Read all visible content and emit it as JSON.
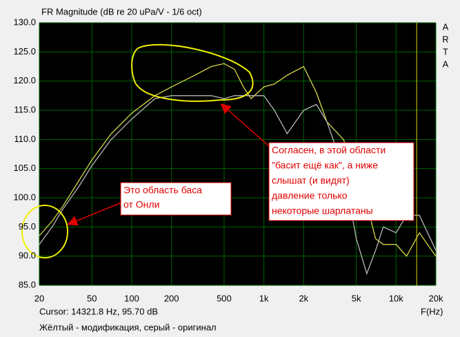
{
  "chart_data": {
    "type": "line",
    "title": "FR Magnitude (dB re 20 uPa/V - 1/6 oct)",
    "x_label": "F(Hz)",
    "side_label": [
      "A",
      "R",
      "T",
      "A"
    ],
    "log_x": true,
    "grid": true,
    "x": [
      20,
      25,
      30,
      40,
      50,
      70,
      100,
      150,
      200,
      300,
      400,
      500,
      600,
      700,
      800,
      1000,
      1200,
      1500,
      2000,
      2500,
      3000,
      4000,
      5000,
      6000,
      7000,
      8000,
      10000,
      12000,
      15000,
      20000
    ],
    "series": [
      {
        "name": "modified",
        "color": "#d8d84a",
        "values": [
          93.5,
          96,
          98.5,
          103,
          106.5,
          111,
          114.5,
          117.5,
          119,
          121,
          122.5,
          123,
          122,
          119,
          117,
          119,
          119.5,
          121,
          122.5,
          118,
          113,
          110,
          104,
          99,
          93,
          92,
          92,
          90,
          94,
          90
        ]
      },
      {
        "name": "original",
        "color": "#b8b8b8",
        "values": [
          92,
          95,
          98,
          102,
          105.5,
          110,
          113.5,
          117,
          117.5,
          117.5,
          117.5,
          117,
          117.5,
          117.5,
          117.5,
          117.5,
          115,
          111,
          115,
          116,
          113,
          105,
          93,
          87,
          91,
          95,
          94,
          97,
          97,
          91
        ]
      }
    ],
    "xlim": [
      20,
      20000
    ],
    "xticks": [
      20,
      50,
      100,
      200,
      500,
      {
        "value": 1000,
        "label": "1k"
      },
      {
        "value": 2000,
        "label": "2k"
      },
      {
        "value": 5000,
        "label": "5k"
      },
      {
        "value": 10000,
        "label": "10k"
      },
      {
        "value": 20000,
        "label": "20k"
      }
    ],
    "ylim": [
      85,
      130
    ],
    "yticks": [
      {
        "value": 85,
        "label": "85.0"
      },
      {
        "value": 90,
        "label": "90.0"
      },
      {
        "value": 95,
        "label": "95.0"
      },
      {
        "value": 100,
        "label": "100.0"
      },
      {
        "value": 105,
        "label": "105.0"
      },
      {
        "value": 110,
        "label": "110.0"
      },
      {
        "value": 115,
        "label": "115.0"
      },
      {
        "value": 120,
        "label": "120.0"
      },
      {
        "value": 125,
        "label": "125.0"
      },
      {
        "value": 130,
        "label": "130.0"
      }
    ],
    "cursor": {
      "label": "Cursor: 14321.8 Hz, 95.70 dB",
      "x": 14321.8,
      "color": "#d8d800"
    },
    "footer": "Жёлтый - модификация, серый - оригинал",
    "annotations": [
      {
        "lines": [
          "Это область баса",
          "от Онли"
        ]
      },
      {
        "lines": [
          "Согласен, в этой области",
          "\"басит ещё как\", а ниже",
          "слышат (и видят)",
          "давление только",
          "некоторые шарлатаны"
        ]
      }
    ]
  }
}
